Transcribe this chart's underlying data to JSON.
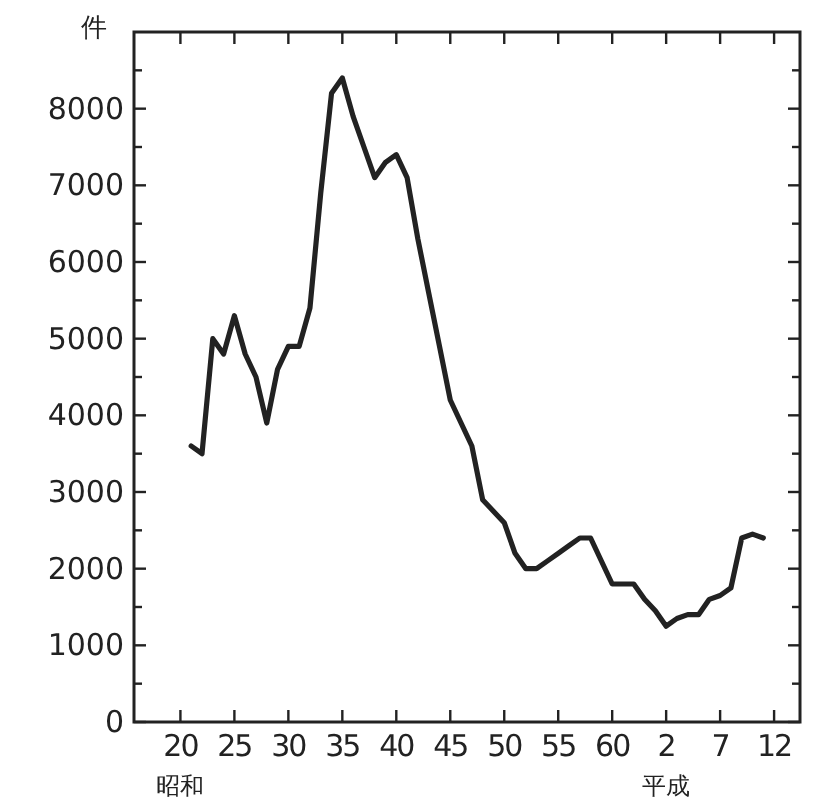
{
  "chart_data": {
    "type": "line",
    "ylabel": "件",
    "annotations": [
      "昭和",
      "平成"
    ],
    "categories": [
      "20",
      null,
      null,
      null,
      null,
      "25",
      null,
      null,
      null,
      null,
      "30",
      null,
      null,
      null,
      null,
      "35",
      null,
      null,
      null,
      null,
      "40",
      null,
      null,
      null,
      null,
      "45",
      null,
      null,
      null,
      null,
      "50",
      null,
      null,
      null,
      null,
      "55",
      null,
      null,
      null,
      null,
      "60",
      null,
      null,
      null,
      null,
      "2",
      null,
      null,
      null,
      null,
      "7",
      null,
      null,
      null,
      null,
      "12"
    ],
    "series": [
      {
        "color": "#222222",
        "values": [
          null,
          3600,
          3500,
          5000,
          4800,
          5300,
          4800,
          4500,
          3900,
          4600,
          4900,
          4900,
          5400,
          6900,
          8200,
          8400,
          7900,
          7500,
          7100,
          7300,
          7400,
          7100,
          6300,
          5600,
          4900,
          4200,
          3900,
          3600,
          2900,
          2750,
          2600,
          2200,
          2000,
          2000,
          2100,
          2200,
          2300,
          2400,
          2400,
          2100,
          1800,
          1800,
          1800,
          1600,
          1450,
          1250,
          1350,
          1400,
          1400,
          1600,
          1650,
          1750,
          2400,
          2450,
          2400,
          null
        ]
      }
    ],
    "ylim": [
      0,
      9000
    ],
    "yticks": [
      0,
      {
        "value": 500,
        "label": null
      },
      1000,
      {
        "value": 1500,
        "label": null
      },
      2000,
      {
        "value": 2500,
        "label": null
      },
      3000,
      {
        "value": 3500,
        "label": null
      },
      4000,
      {
        "value": 4500,
        "label": null
      },
      5000,
      {
        "value": 5500,
        "label": null
      },
      6000,
      {
        "value": 6500,
        "label": null
      },
      7000,
      {
        "value": 7500,
        "label": null
      },
      8000,
      {
        "value": 8500,
        "label": null
      }
    ],
    "grid": false,
    "marker": "none",
    "line_style": "solid"
  }
}
